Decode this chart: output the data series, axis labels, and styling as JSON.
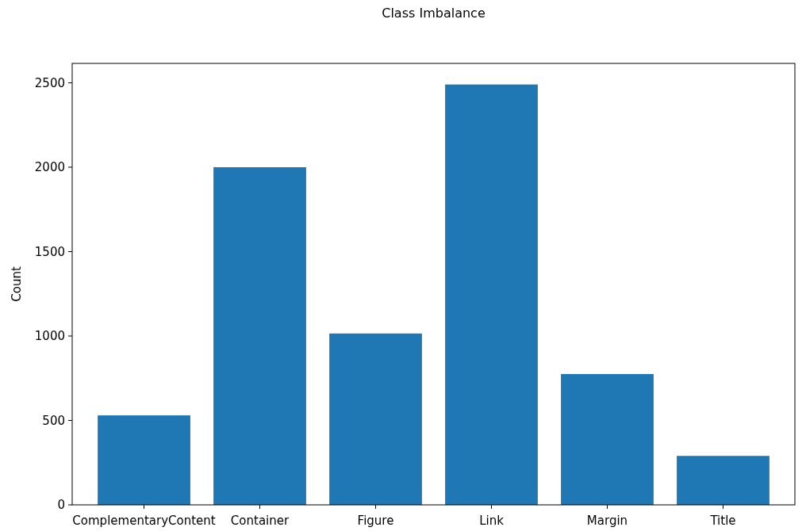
{
  "chart_data": {
    "type": "bar",
    "title": "Class Imbalance",
    "ylabel": "Count",
    "categories": [
      "ComplementaryContent",
      "Container",
      "Figure",
      "Link",
      "Margin",
      "Title"
    ],
    "values": [
      530,
      2000,
      1015,
      2490,
      775,
      290
    ],
    "color": "#1f77b4",
    "ylim": [
      0,
      2615
    ],
    "yticks": [
      0,
      500,
      1000,
      1500,
      2000,
      2500
    ],
    "grid": false
  }
}
